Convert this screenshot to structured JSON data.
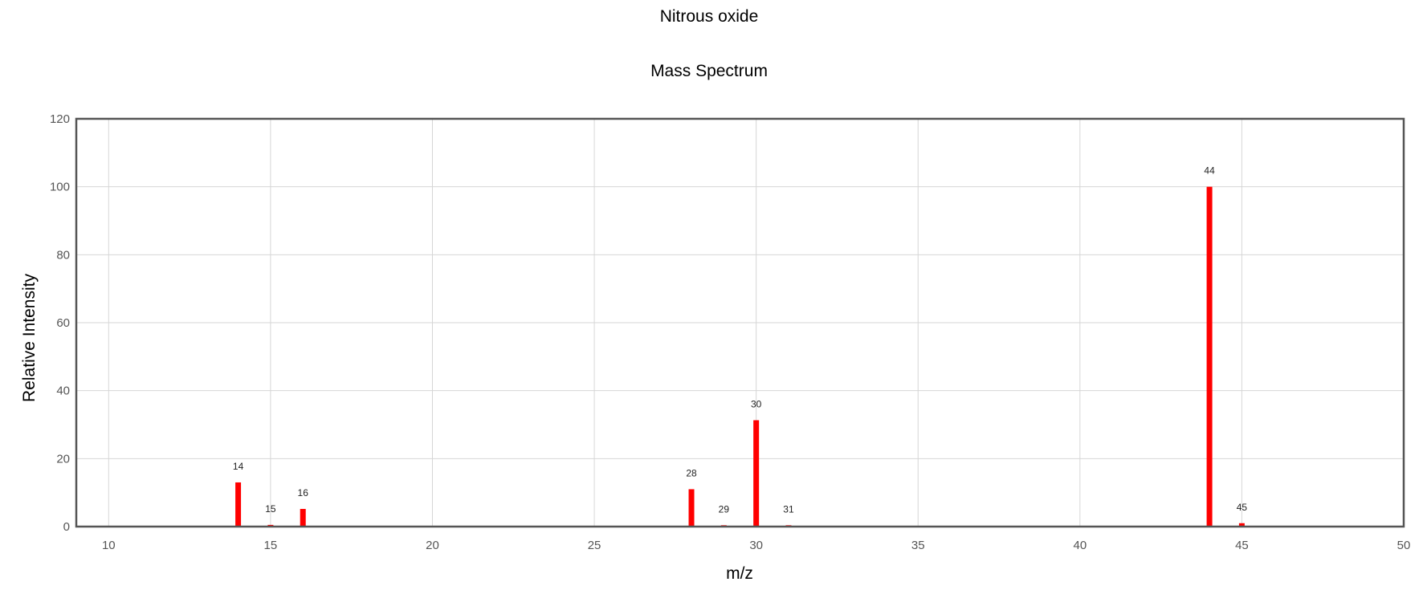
{
  "chart_data": {
    "type": "bar",
    "title": "Nitrous oxide",
    "subtitle": "Mass Spectrum",
    "xlabel": "m/z",
    "ylabel": "Relative Intensity",
    "xlim": [
      9,
      50
    ],
    "ylim": [
      0,
      120
    ],
    "x_ticks": [
      10,
      15,
      20,
      25,
      30,
      35,
      40,
      45,
      50
    ],
    "y_ticks": [
      0,
      20,
      40,
      60,
      80,
      100,
      120
    ],
    "grid": true,
    "legend": "none",
    "bar_color": "#ff0000",
    "points": [
      {
        "x": 14,
        "y": 13,
        "label": "14"
      },
      {
        "x": 15,
        "y": 0.5,
        "label": "15"
      },
      {
        "x": 16,
        "y": 5.2,
        "label": "16"
      },
      {
        "x": 28,
        "y": 11,
        "label": "28"
      },
      {
        "x": 29,
        "y": 0.4,
        "label": "29"
      },
      {
        "x": 30,
        "y": 31.3,
        "label": "30"
      },
      {
        "x": 31,
        "y": 0.4,
        "label": "31"
      },
      {
        "x": 44,
        "y": 100,
        "label": "44"
      },
      {
        "x": 45,
        "y": 1,
        "label": "45"
      }
    ]
  }
}
